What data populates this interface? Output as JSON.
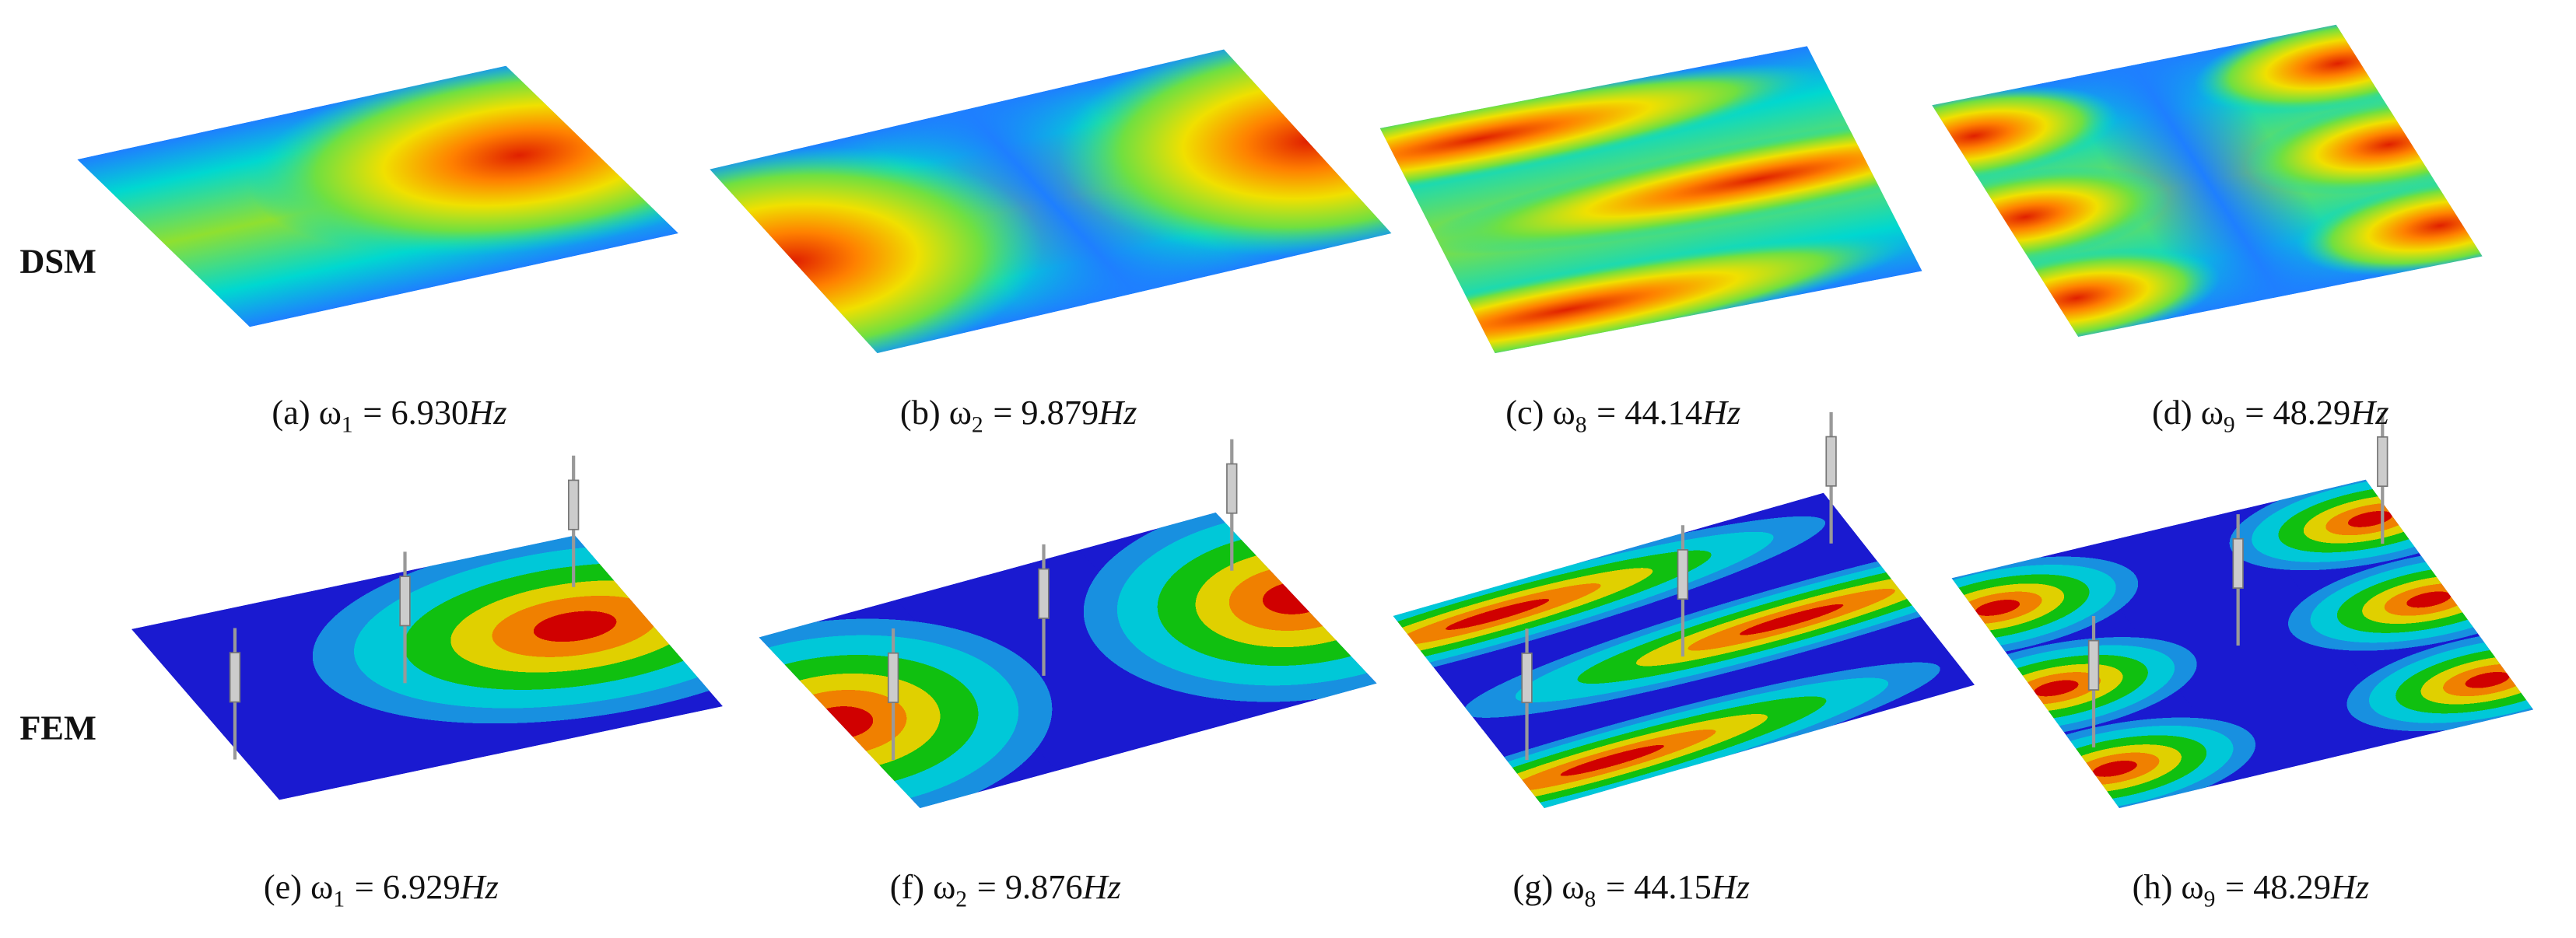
{
  "rows": [
    {
      "label": "DSM",
      "captions": [
        {
          "prefix": "(a) ω",
          "subscript": "1",
          "value": "= 6.930",
          "unit": "Hz"
        },
        {
          "prefix": "(b) ω",
          "subscript": "2",
          "value": "= 9.879",
          "unit": "Hz"
        },
        {
          "prefix": "(c) ω",
          "subscript": "8",
          "value": "= 44.14",
          "unit": "Hz"
        },
        {
          "prefix": "(d) ω",
          "subscript": "9",
          "value": "= 48.29",
          "unit": "Hz"
        }
      ]
    },
    {
      "label": "FEM",
      "captions": [
        {
          "prefix": "(e) ω",
          "subscript": "1",
          "value": "= 6.929",
          "unit": "Hz"
        },
        {
          "prefix": "(f) ω",
          "subscript": "2",
          "value": "= 9.876",
          "unit": "Hz"
        },
        {
          "prefix": "(g)  ω",
          "subscript": "8",
          "value": "= 44.15",
          "unit": "Hz"
        },
        {
          "prefix": "(h) ω",
          "subscript": "9",
          "value": "= 48.29",
          "unit": "Hz"
        }
      ]
    }
  ]
}
